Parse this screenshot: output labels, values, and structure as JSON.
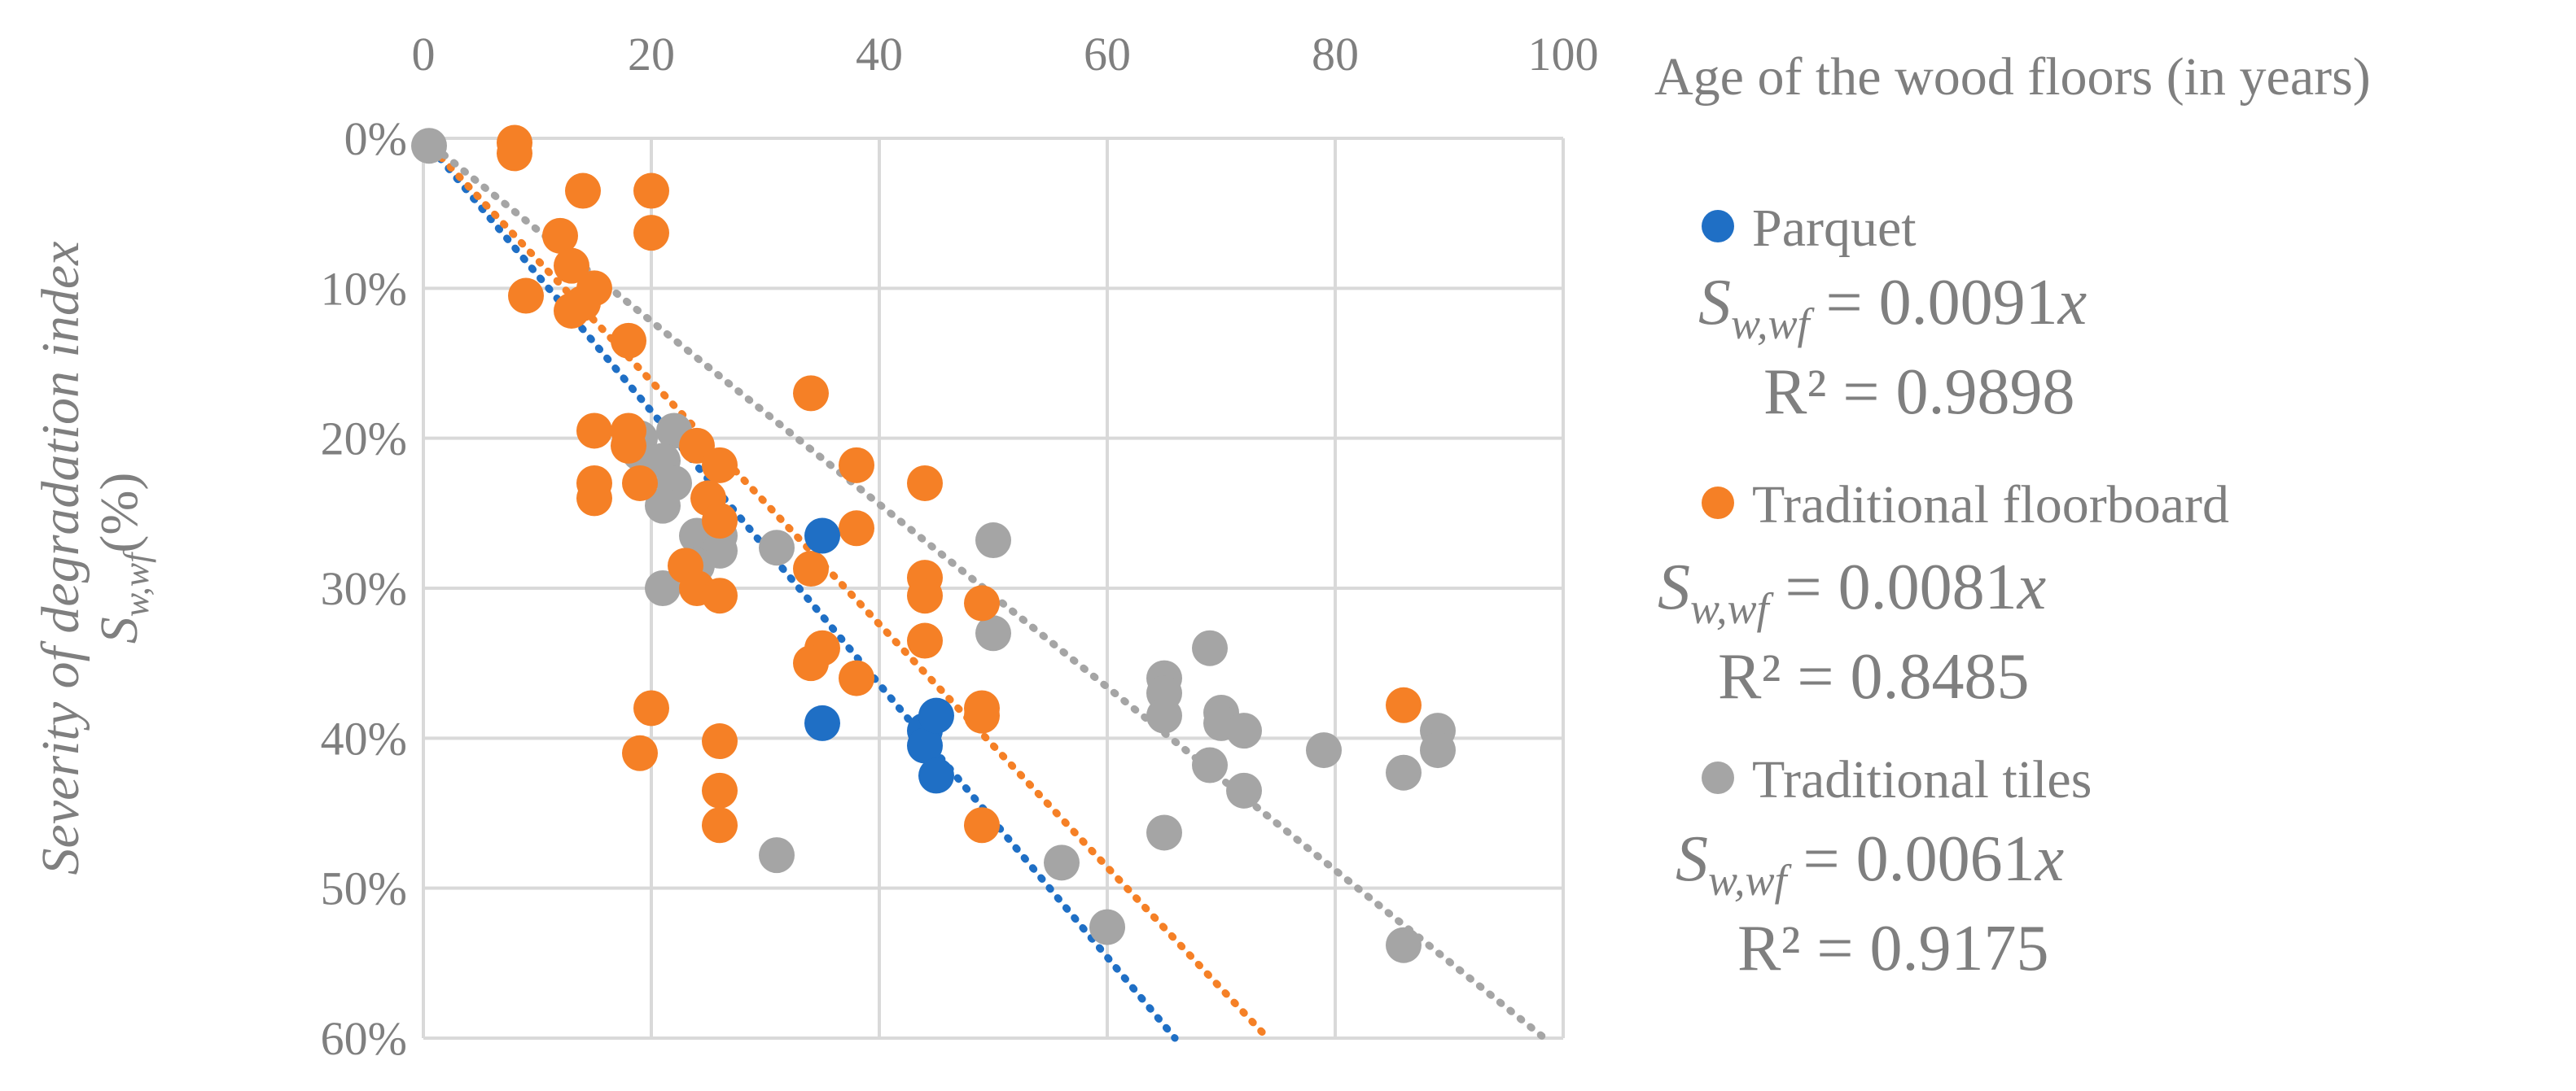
{
  "chart_data": {
    "type": "scatter",
    "title": "",
    "xlabel": "Age of the wood floors (in years)",
    "ylabel": "Severity of degradation index",
    "ylabel_symbol": {
      "base": "S",
      "sub": "w,wf",
      "unit": "(%)"
    },
    "xlim": [
      0,
      100
    ],
    "ylim": [
      0,
      60
    ],
    "x_ticks": [
      0,
      20,
      40,
      60,
      80,
      100
    ],
    "y_ticks": [
      0,
      10,
      20,
      30,
      40,
      50,
      60
    ],
    "x_tick_labels": [
      "0",
      "20",
      "40",
      "60",
      "80",
      "100"
    ],
    "y_tick_labels": [
      "0%",
      "10%",
      "20%",
      "30%",
      "40%",
      "50%",
      "60%"
    ],
    "x_axis_position": "top",
    "y_axis_inverted": true,
    "grid": true,
    "legend_position": "right",
    "series": [
      {
        "name": "Parquet",
        "color": "#1f6fc5",
        "trendline": {
          "slope": 0.0091,
          "equation": "= 0.0091x",
          "r2_label": "R² = 0.9898"
        },
        "points": [
          {
            "x": 35,
            "y": 26.5
          },
          {
            "x": 35,
            "y": 39
          },
          {
            "x": 44,
            "y": 39.5
          },
          {
            "x": 44,
            "y": 40.5
          },
          {
            "x": 45,
            "y": 38.5
          },
          {
            "x": 45,
            "y": 42.5
          }
        ]
      },
      {
        "name": "Traditional floorboard",
        "color": "#f58026",
        "trendline": {
          "slope": 0.0081,
          "equation": "= 0.0081x",
          "r2_label": "R² = 0.8485"
        },
        "points": [
          {
            "x": 8,
            "y": 0.3
          },
          {
            "x": 8,
            "y": 1
          },
          {
            "x": 14,
            "y": 3.5
          },
          {
            "x": 20,
            "y": 3.5
          },
          {
            "x": 20,
            "y": 6.3
          },
          {
            "x": 12,
            "y": 6.5
          },
          {
            "x": 13,
            "y": 8.5
          },
          {
            "x": 15,
            "y": 10
          },
          {
            "x": 9,
            "y": 10.5
          },
          {
            "x": 14,
            "y": 11
          },
          {
            "x": 13,
            "y": 11.5
          },
          {
            "x": 18,
            "y": 13.5
          },
          {
            "x": 34,
            "y": 17
          },
          {
            "x": 15,
            "y": 19.5
          },
          {
            "x": 18,
            "y": 19.5
          },
          {
            "x": 18,
            "y": 20.5
          },
          {
            "x": 24,
            "y": 20.5
          },
          {
            "x": 26,
            "y": 21.8
          },
          {
            "x": 38,
            "y": 21.8
          },
          {
            "x": 15,
            "y": 23
          },
          {
            "x": 19,
            "y": 23
          },
          {
            "x": 44,
            "y": 23
          },
          {
            "x": 15,
            "y": 24
          },
          {
            "x": 25,
            "y": 24
          },
          {
            "x": 26,
            "y": 25.5
          },
          {
            "x": 38,
            "y": 26
          },
          {
            "x": 23,
            "y": 28.5
          },
          {
            "x": 34,
            "y": 28.7
          },
          {
            "x": 44,
            "y": 29.3
          },
          {
            "x": 24,
            "y": 30
          },
          {
            "x": 44,
            "y": 30.5
          },
          {
            "x": 26,
            "y": 30.5
          },
          {
            "x": 49,
            "y": 31
          },
          {
            "x": 44,
            "y": 33.5
          },
          {
            "x": 35,
            "y": 34
          },
          {
            "x": 34,
            "y": 35
          },
          {
            "x": 38,
            "y": 36
          },
          {
            "x": 20,
            "y": 38
          },
          {
            "x": 49,
            "y": 38
          },
          {
            "x": 49,
            "y": 38.5
          },
          {
            "x": 86,
            "y": 37.8
          },
          {
            "x": 26,
            "y": 40.2
          },
          {
            "x": 19,
            "y": 41
          },
          {
            "x": 26,
            "y": 43.5
          },
          {
            "x": 26,
            "y": 45.8
          },
          {
            "x": 49,
            "y": 45.8
          }
        ]
      },
      {
        "name": "Traditional tiles",
        "color": "#a5a5a5",
        "trendline": {
          "slope": 0.0061,
          "equation": "= 0.0061x",
          "r2_label": "R² = 0.9175"
        },
        "points": [
          {
            "x": 0.5,
            "y": 0.5
          },
          {
            "x": 22,
            "y": 19.5
          },
          {
            "x": 19,
            "y": 20
          },
          {
            "x": 19,
            "y": 21
          },
          {
            "x": 21,
            "y": 21.5
          },
          {
            "x": 22,
            "y": 23
          },
          {
            "x": 21,
            "y": 24.5
          },
          {
            "x": 24,
            "y": 26.5
          },
          {
            "x": 26,
            "y": 26.5
          },
          {
            "x": 31,
            "y": 27.3
          },
          {
            "x": 26,
            "y": 27.5
          },
          {
            "x": 24,
            "y": 28.5
          },
          {
            "x": 50,
            "y": 26.8
          },
          {
            "x": 21,
            "y": 30
          },
          {
            "x": 50,
            "y": 33
          },
          {
            "x": 69,
            "y": 34
          },
          {
            "x": 65,
            "y": 36
          },
          {
            "x": 65,
            "y": 37
          },
          {
            "x": 65,
            "y": 38.5
          },
          {
            "x": 70,
            "y": 38.3
          },
          {
            "x": 70,
            "y": 39
          },
          {
            "x": 72,
            "y": 39.5
          },
          {
            "x": 89,
            "y": 39.5
          },
          {
            "x": 79,
            "y": 40.8
          },
          {
            "x": 89,
            "y": 40.8
          },
          {
            "x": 69,
            "y": 41.8
          },
          {
            "x": 86,
            "y": 42.3
          },
          {
            "x": 72,
            "y": 43.5
          },
          {
            "x": 65,
            "y": 46.3
          },
          {
            "x": 31,
            "y": 47.8
          },
          {
            "x": 56,
            "y": 48.3
          },
          {
            "x": 60,
            "y": 52.6
          },
          {
            "x": 86,
            "y": 53.8
          }
        ]
      }
    ]
  }
}
